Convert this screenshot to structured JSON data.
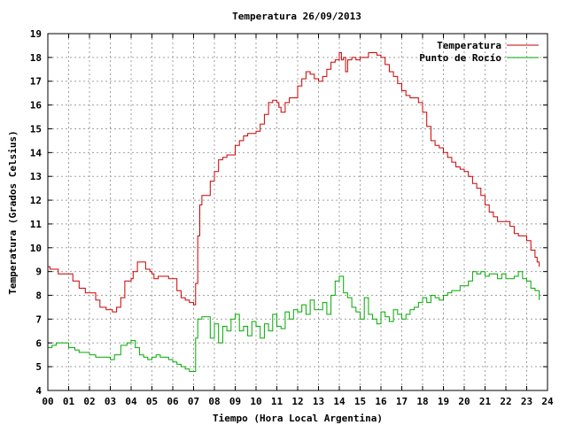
{
  "chart_data": {
    "type": "line",
    "title": "Temperatura 26/09/2013",
    "xlabel": "Tiempo (Hora Local Argentina)",
    "ylabel": "Temperatura (Grados Celsius)",
    "xlim": [
      0,
      24
    ],
    "ylim": [
      4,
      19
    ],
    "xticks": [
      "00",
      "01",
      "02",
      "03",
      "04",
      "05",
      "06",
      "07",
      "08",
      "09",
      "10",
      "11",
      "12",
      "13",
      "14",
      "15",
      "16",
      "17",
      "18",
      "19",
      "20",
      "21",
      "22",
      "23",
      "24"
    ],
    "yticks": [
      "4",
      "5",
      "6",
      "7",
      "8",
      "9",
      "10",
      "11",
      "12",
      "13",
      "14",
      "15",
      "16",
      "17",
      "18",
      "19"
    ],
    "grid": true,
    "legend_position": "top-right",
    "series": [
      {
        "name": "Temperatura",
        "color": "#cc0000",
        "x": [
          0,
          0.1,
          0.3,
          0.5,
          1.0,
          1.2,
          1.5,
          1.8,
          2.0,
          2.3,
          2.5,
          2.8,
          3.0,
          3.1,
          3.3,
          3.5,
          3.7,
          4.0,
          4.1,
          4.3,
          4.5,
          4.7,
          4.9,
          5.0,
          5.1,
          5.3,
          5.5,
          5.8,
          6.0,
          6.2,
          6.4,
          6.6,
          6.8,
          7.0,
          7.1,
          7.2,
          7.3,
          7.4,
          7.5,
          7.6,
          7.8,
          8.0,
          8.2,
          8.4,
          8.6,
          8.8,
          9.0,
          9.2,
          9.4,
          9.6,
          9.8,
          10.0,
          10.2,
          10.4,
          10.6,
          10.8,
          11.0,
          11.1,
          11.2,
          11.4,
          11.6,
          11.8,
          12.0,
          12.2,
          12.4,
          12.6,
          12.8,
          13.0,
          13.2,
          13.4,
          13.6,
          13.8,
          14.0,
          14.1,
          14.2,
          14.3,
          14.4,
          14.6,
          14.8,
          15.0,
          15.2,
          15.4,
          15.6,
          15.8,
          16.0,
          16.2,
          16.4,
          16.6,
          16.8,
          17.0,
          17.2,
          17.4,
          17.6,
          17.8,
          18.0,
          18.2,
          18.4,
          18.6,
          18.8,
          19.0,
          19.2,
          19.4,
          19.6,
          19.8,
          20.0,
          20.2,
          20.4,
          20.6,
          20.8,
          21.0,
          21.2,
          21.4,
          21.6,
          21.8,
          22.0,
          22.2,
          22.4,
          22.6,
          22.8,
          23.0,
          23.2,
          23.4,
          23.5,
          23.6
        ],
        "values": [
          9.2,
          9.1,
          9.1,
          8.9,
          8.9,
          8.6,
          8.3,
          8.1,
          8.1,
          7.8,
          7.5,
          7.4,
          7.4,
          7.3,
          7.5,
          7.9,
          8.6,
          8.7,
          9.0,
          9.4,
          9.4,
          9.1,
          9.0,
          8.9,
          8.7,
          8.8,
          8.8,
          8.7,
          8.7,
          8.2,
          7.9,
          7.8,
          7.7,
          7.6,
          8.5,
          10.5,
          11.8,
          12.2,
          12.2,
          12.2,
          12.8,
          13.2,
          13.7,
          13.8,
          13.9,
          13.9,
          14.3,
          14.5,
          14.7,
          14.8,
          14.8,
          14.9,
          15.2,
          15.6,
          16.1,
          16.2,
          16.1,
          15.9,
          15.7,
          16.1,
          16.3,
          16.3,
          16.8,
          17.1,
          17.4,
          17.3,
          17.1,
          17.0,
          17.2,
          17.5,
          17.8,
          17.9,
          18.2,
          17.9,
          18.0,
          17.4,
          17.9,
          18.0,
          17.9,
          18.0,
          18.0,
          18.2,
          18.2,
          18.1,
          18.0,
          17.7,
          17.4,
          17.2,
          16.9,
          16.6,
          16.4,
          16.3,
          16.3,
          16.1,
          15.7,
          15.1,
          14.5,
          14.3,
          14.2,
          14.0,
          13.8,
          13.6,
          13.4,
          13.3,
          13.2,
          13.0,
          12.7,
          12.5,
          12.2,
          11.8,
          11.5,
          11.3,
          11.1,
          11.1,
          11.1,
          10.9,
          10.6,
          10.5,
          10.5,
          10.3,
          9.9,
          9.6,
          9.4,
          9.2
        ],
        "values_unit": "Grados Celsius"
      },
      {
        "name": "Punto de Rocío",
        "color": "#00aa00",
        "x": [
          0,
          0.2,
          0.4,
          0.6,
          0.8,
          1.0,
          1.3,
          1.5,
          1.8,
          2.0,
          2.3,
          2.5,
          2.8,
          3.0,
          3.2,
          3.5,
          3.8,
          4.0,
          4.2,
          4.4,
          4.6,
          4.8,
          5.0,
          5.2,
          5.4,
          5.6,
          5.8,
          6.0,
          6.2,
          6.4,
          6.6,
          6.8,
          7.0,
          7.1,
          7.2,
          7.4,
          7.6,
          7.8,
          8.0,
          8.2,
          8.4,
          8.6,
          8.8,
          9.0,
          9.2,
          9.4,
          9.6,
          9.8,
          10.0,
          10.2,
          10.4,
          10.6,
          10.8,
          11.0,
          11.2,
          11.4,
          11.6,
          11.8,
          12.0,
          12.2,
          12.4,
          12.6,
          12.8,
          13.0,
          13.2,
          13.4,
          13.6,
          13.8,
          14.0,
          14.2,
          14.4,
          14.6,
          14.8,
          15.0,
          15.2,
          15.4,
          15.6,
          15.8,
          16.0,
          16.2,
          16.4,
          16.6,
          16.8,
          17.0,
          17.2,
          17.4,
          17.6,
          17.8,
          18.0,
          18.2,
          18.4,
          18.6,
          18.8,
          19.0,
          19.2,
          19.4,
          19.6,
          19.8,
          20.0,
          20.2,
          20.4,
          20.6,
          20.8,
          21.0,
          21.2,
          21.4,
          21.6,
          21.8,
          22.0,
          22.2,
          22.4,
          22.6,
          22.8,
          23.0,
          23.2,
          23.4,
          23.6
        ],
        "values": [
          5.8,
          5.9,
          6.0,
          6.0,
          6.0,
          5.8,
          5.7,
          5.6,
          5.6,
          5.5,
          5.4,
          5.4,
          5.4,
          5.3,
          5.5,
          5.9,
          6.0,
          6.1,
          5.8,
          5.5,
          5.4,
          5.3,
          5.4,
          5.5,
          5.4,
          5.4,
          5.3,
          5.2,
          5.1,
          5.0,
          4.9,
          4.8,
          4.8,
          6.2,
          7.0,
          7.1,
          7.1,
          6.2,
          6.8,
          6.0,
          6.7,
          6.5,
          7.0,
          7.2,
          6.5,
          6.7,
          6.3,
          6.9,
          6.7,
          6.2,
          6.8,
          6.5,
          7.2,
          6.7,
          6.6,
          7.3,
          7.0,
          7.4,
          7.3,
          7.6,
          7.2,
          7.8,
          7.4,
          7.4,
          7.7,
          7.2,
          8.0,
          8.6,
          8.8,
          8.1,
          7.9,
          7.5,
          7.3,
          7.0,
          7.9,
          7.2,
          7.0,
          6.8,
          7.3,
          7.1,
          6.9,
          7.4,
          7.2,
          7.0,
          7.2,
          7.4,
          7.5,
          7.7,
          7.9,
          7.7,
          8.0,
          7.9,
          7.8,
          8.0,
          8.1,
          8.2,
          8.2,
          8.4,
          8.4,
          8.6,
          9.0,
          8.9,
          9.0,
          8.8,
          8.9,
          8.9,
          8.7,
          8.9,
          8.7,
          8.7,
          8.8,
          9.0,
          8.7,
          8.6,
          8.3,
          8.2,
          7.8
        ],
        "values_unit": "Grados Celsius"
      }
    ]
  }
}
